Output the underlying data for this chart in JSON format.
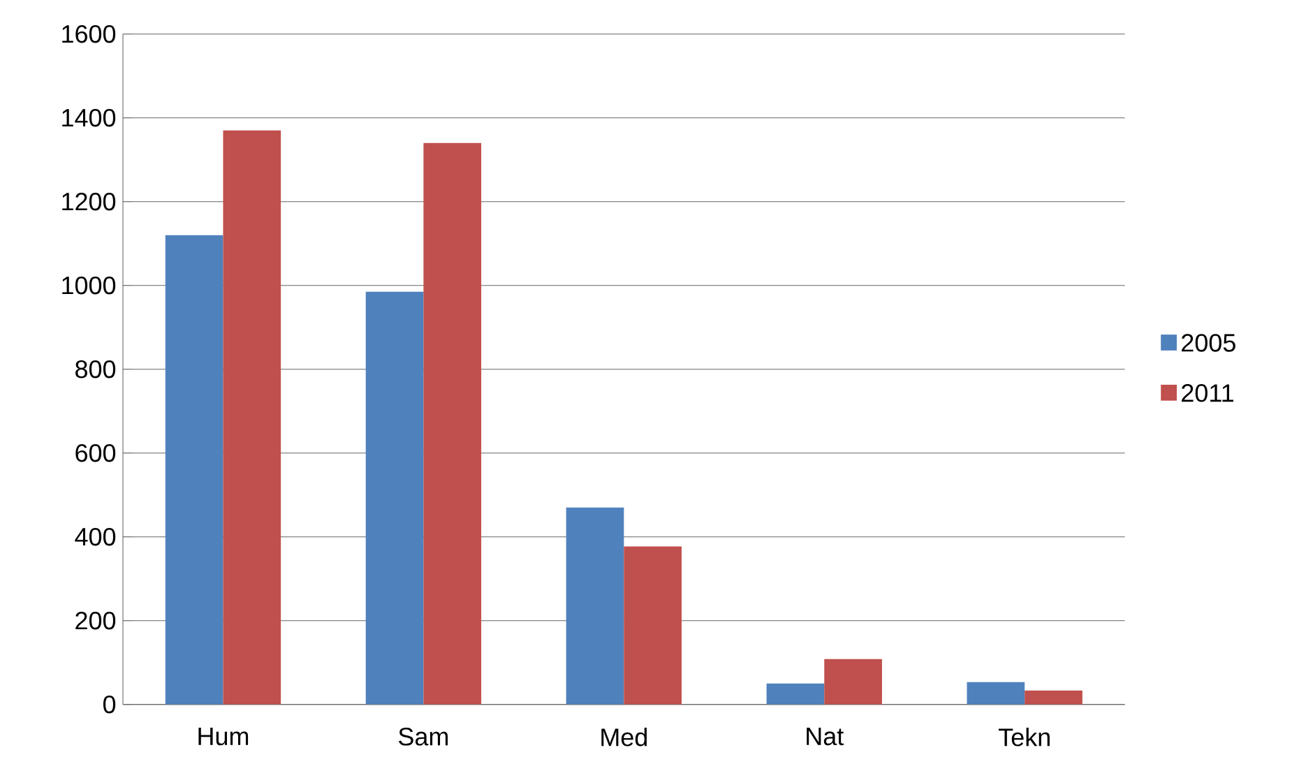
{
  "chart_data": {
    "type": "bar",
    "categories": [
      "Hum",
      "Sam",
      "Med",
      "Nat",
      "Tekn"
    ],
    "series": [
      {
        "name": "2005",
        "color": "#4f81bd",
        "values": [
          1120,
          985,
          470,
          50,
          53
        ]
      },
      {
        "name": "2011",
        "color": "#c0504d",
        "values": [
          1370,
          1340,
          377,
          108,
          33
        ]
      }
    ],
    "ylim": [
      0,
      1600
    ],
    "yticks": [
      0,
      200,
      400,
      600,
      800,
      1000,
      1200,
      1400,
      1600
    ],
    "grid": "y",
    "legend": "right"
  }
}
